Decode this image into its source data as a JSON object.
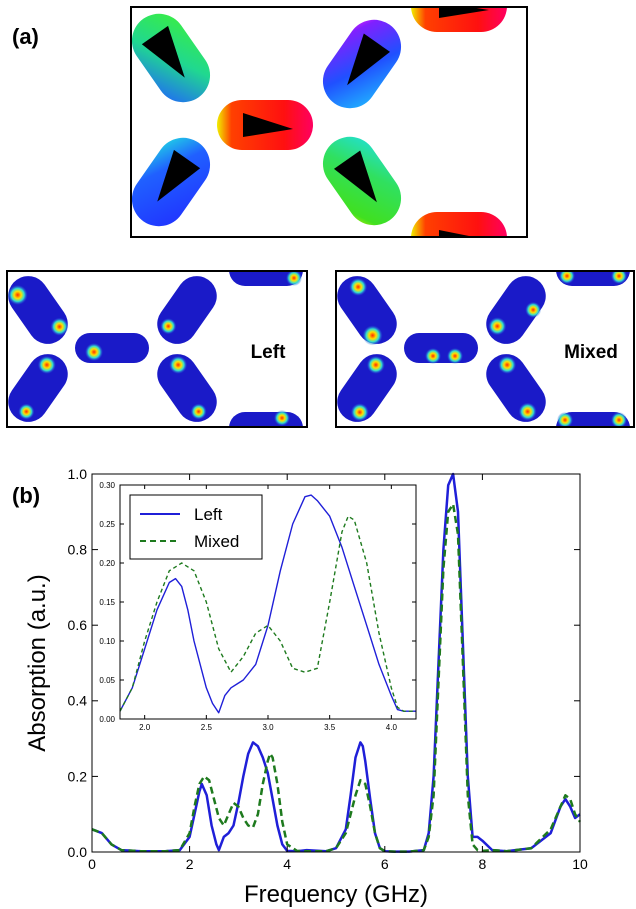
{
  "panels": {
    "a_label": "(a)",
    "b_label": "(b)",
    "left_map_label": "Left",
    "mixed_map_label": "Mixed"
  },
  "colors": {
    "left_series": "#1f1fd8",
    "mixed_series": "#1e7a1e",
    "field_low": "#1a1ac8",
    "field_high": "#ff2a00"
  },
  "chart_data": [
    {
      "type": "line",
      "title": "",
      "xlabel": "Frequency (GHz)",
      "ylabel": "Absorption (a.u.)",
      "xlim": [
        0,
        10
      ],
      "ylim": [
        0,
        1.0
      ],
      "x_ticks": [
        "0",
        "2",
        "4",
        "6",
        "8",
        "10"
      ],
      "y_ticks": [
        "0.0",
        "0.2",
        "0.4",
        "0.6",
        "0.8",
        "1.0"
      ],
      "grid": false,
      "series": [
        {
          "name": "Left",
          "style": "solid",
          "x": [
            0,
            0.2,
            0.4,
            0.6,
            1.0,
            1.5,
            1.8,
            2.0,
            2.1,
            2.2,
            2.25,
            2.35,
            2.45,
            2.55,
            2.6,
            2.7,
            2.8,
            2.9,
            3.0,
            3.1,
            3.2,
            3.3,
            3.4,
            3.5,
            3.6,
            3.7,
            3.8,
            3.9,
            4.0,
            4.2,
            4.4,
            4.8,
            5.0,
            5.2,
            5.3,
            5.4,
            5.5,
            5.55,
            5.6,
            5.7,
            5.8,
            5.9,
            6.0,
            6.2,
            6.5,
            6.8,
            6.9,
            7.0,
            7.1,
            7.2,
            7.3,
            7.4,
            7.5,
            7.6,
            7.7,
            7.8,
            7.9,
            8.0,
            8.2,
            8.5,
            9.0,
            9.4,
            9.6,
            9.7,
            9.8,
            9.9,
            10.0
          ],
          "y": [
            0.06,
            0.05,
            0.02,
            0.005,
            0.002,
            0.002,
            0.005,
            0.04,
            0.1,
            0.16,
            0.18,
            0.15,
            0.07,
            0.02,
            0.005,
            0.04,
            0.05,
            0.07,
            0.13,
            0.2,
            0.26,
            0.29,
            0.28,
            0.25,
            0.21,
            0.14,
            0.07,
            0.02,
            0.003,
            0.002,
            0.005,
            0.002,
            0.01,
            0.06,
            0.15,
            0.25,
            0.29,
            0.28,
            0.24,
            0.14,
            0.05,
            0.01,
            0.002,
            0.001,
            0.001,
            0.005,
            0.05,
            0.2,
            0.5,
            0.8,
            0.97,
            1.0,
            0.9,
            0.55,
            0.2,
            0.04,
            0.04,
            0.03,
            0.005,
            0.002,
            0.01,
            0.05,
            0.12,
            0.14,
            0.12,
            0.09,
            0.1
          ]
        },
        {
          "name": "Mixed",
          "style": "dashed",
          "x": [
            0,
            0.2,
            0.4,
            0.6,
            1.0,
            1.5,
            1.8,
            2.0,
            2.1,
            2.2,
            2.3,
            2.4,
            2.5,
            2.6,
            2.7,
            2.8,
            2.9,
            3.0,
            3.1,
            3.2,
            3.3,
            3.4,
            3.5,
            3.6,
            3.65,
            3.7,
            3.8,
            3.9,
            4.0,
            4.2,
            4.4,
            4.8,
            5.0,
            5.2,
            5.4,
            5.5,
            5.6,
            5.7,
            5.8,
            5.9,
            6.0,
            6.2,
            6.5,
            6.8,
            6.9,
            7.0,
            7.1,
            7.2,
            7.3,
            7.4,
            7.5,
            7.6,
            7.7,
            7.8,
            7.9,
            8.0,
            8.2,
            8.5,
            9.0,
            9.4,
            9.6,
            9.7,
            9.8,
            9.9,
            10.0
          ],
          "y": [
            0.06,
            0.05,
            0.02,
            0.005,
            0.002,
            0.002,
            0.005,
            0.05,
            0.12,
            0.18,
            0.2,
            0.19,
            0.14,
            0.09,
            0.07,
            0.1,
            0.13,
            0.12,
            0.09,
            0.07,
            0.065,
            0.1,
            0.18,
            0.24,
            0.26,
            0.25,
            0.18,
            0.08,
            0.02,
            0.003,
            0.002,
            0.002,
            0.01,
            0.05,
            0.15,
            0.19,
            0.18,
            0.12,
            0.05,
            0.01,
            0.002,
            0.001,
            0.001,
            0.005,
            0.04,
            0.15,
            0.45,
            0.75,
            0.9,
            0.92,
            0.84,
            0.5,
            0.15,
            0.02,
            0.005,
            0.003,
            0.005,
            0.002,
            0.01,
            0.06,
            0.12,
            0.15,
            0.14,
            0.1,
            0.08
          ]
        }
      ]
    },
    {
      "type": "line",
      "title": "",
      "xlabel": "",
      "ylabel": "",
      "xlim": [
        1.8,
        4.2
      ],
      "ylim": [
        0,
        0.3
      ],
      "x_ticks": [
        "2.0",
        "2.5",
        "3.0",
        "3.5",
        "4.0"
      ],
      "y_ticks": [
        "0.00",
        "0.05",
        "0.10",
        "0.15",
        "0.20",
        "0.25",
        "0.30"
      ],
      "legend_position": "top-left",
      "grid": false,
      "series": [
        {
          "name": "Left",
          "style": "solid",
          "x": [
            1.8,
            1.9,
            2.0,
            2.1,
            2.2,
            2.25,
            2.3,
            2.35,
            2.4,
            2.5,
            2.55,
            2.6,
            2.65,
            2.7,
            2.75,
            2.8,
            2.9,
            3.0,
            3.1,
            3.2,
            3.3,
            3.35,
            3.4,
            3.5,
            3.6,
            3.7,
            3.8,
            3.9,
            4.0,
            4.05,
            4.1,
            4.2
          ],
          "y": [
            0.01,
            0.04,
            0.09,
            0.14,
            0.175,
            0.18,
            0.17,
            0.14,
            0.1,
            0.04,
            0.02,
            0.008,
            0.03,
            0.04,
            0.045,
            0.05,
            0.07,
            0.12,
            0.19,
            0.25,
            0.285,
            0.287,
            0.28,
            0.26,
            0.22,
            0.17,
            0.12,
            0.07,
            0.03,
            0.012,
            0.01,
            0.01
          ]
        },
        {
          "name": "Mixed",
          "style": "dashed",
          "x": [
            1.8,
            1.9,
            2.0,
            2.1,
            2.2,
            2.3,
            2.4,
            2.5,
            2.6,
            2.7,
            2.8,
            2.9,
            3.0,
            3.1,
            3.2,
            3.3,
            3.4,
            3.5,
            3.6,
            3.65,
            3.7,
            3.8,
            3.9,
            4.0,
            4.05,
            4.1,
            4.2
          ],
          "y": [
            0.01,
            0.04,
            0.1,
            0.15,
            0.19,
            0.2,
            0.19,
            0.15,
            0.09,
            0.06,
            0.08,
            0.11,
            0.12,
            0.1,
            0.065,
            0.06,
            0.065,
            0.15,
            0.24,
            0.26,
            0.255,
            0.2,
            0.11,
            0.04,
            0.015,
            0.01,
            0.01
          ]
        }
      ]
    }
  ]
}
